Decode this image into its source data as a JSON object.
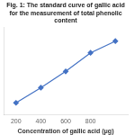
{
  "chart_data": {
    "type": "line",
    "title": "Fig. 1: The standard curve of gallic acid for the measurement of total phenolic content",
    "x_label": "Concentration of gallic acid (μg)",
    "x": [
      200,
      400,
      600,
      800,
      1000
    ],
    "values": [
      0.15,
      0.28,
      0.42,
      0.58,
      0.68
    ],
    "color": "#4472c4",
    "marker": "diamond",
    "xlim": [
      100,
      1100
    ],
    "xticks": [
      200,
      400,
      600,
      800
    ],
    "ylim": [
      0.05,
      0.8
    ],
    "grid": false,
    "tick_labels": "x"
  }
}
